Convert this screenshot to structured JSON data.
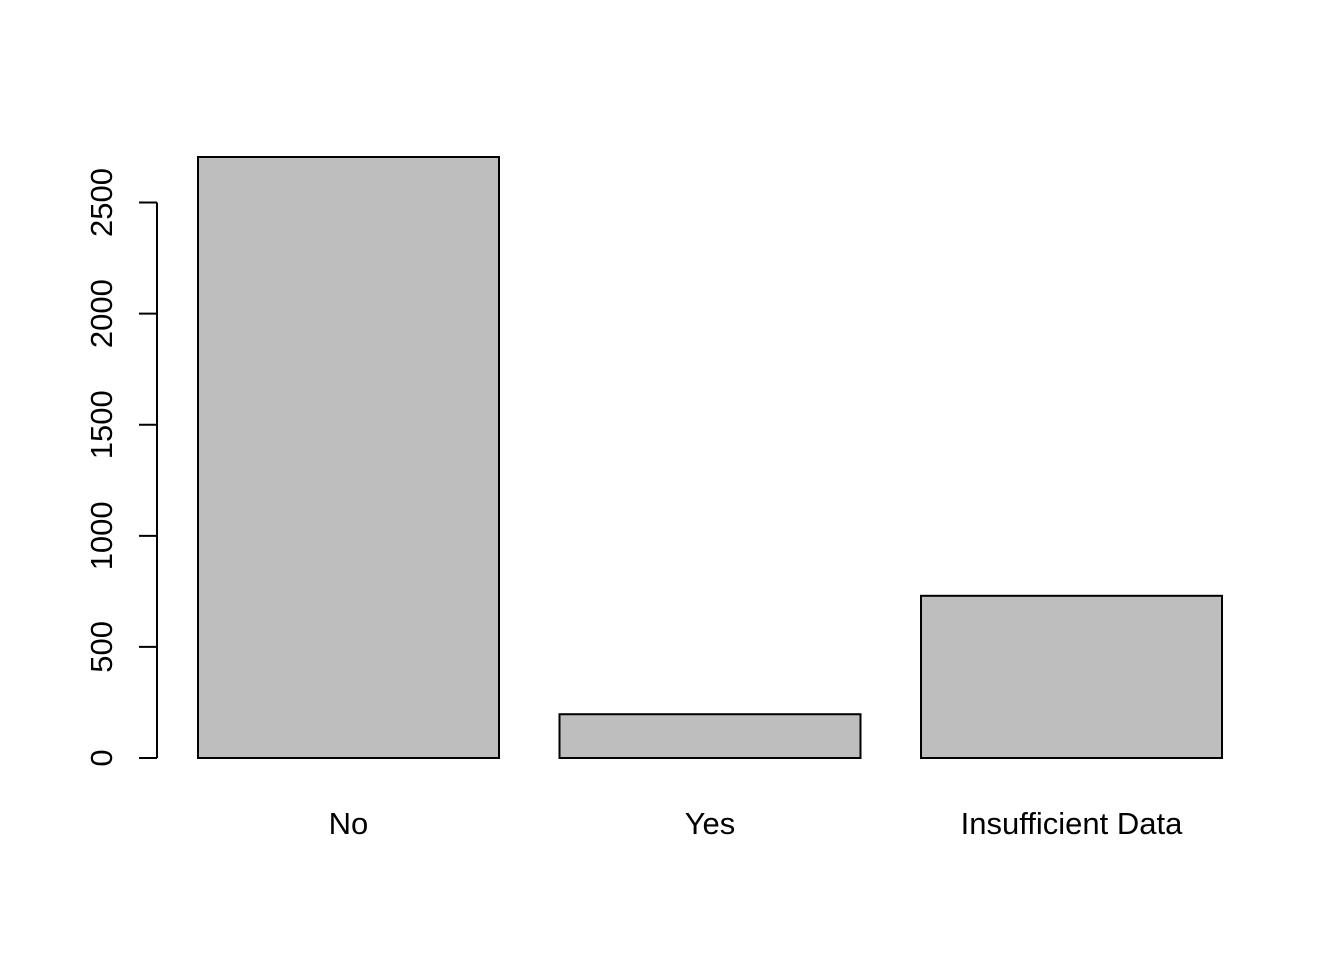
{
  "chart_data": {
    "type": "bar",
    "title": "",
    "xlabel": "",
    "ylabel": "",
    "categories": [
      "No",
      "Yes",
      "Insufficient Data"
    ],
    "values": [
      2705,
      197,
      730
    ],
    "ylim": [
      0,
      2705
    ],
    "yticks": [
      0,
      500,
      1000,
      1500,
      2000,
      2500
    ],
    "ytick_labels": [
      "0",
      "500",
      "1000",
      "1500",
      "2000",
      "2500"
    ],
    "grid": false,
    "legend": "none",
    "colors": {
      "bar_fill": "#bebebe",
      "bar_stroke": "#000000",
      "axis": "#000000",
      "background": "#ffffff"
    }
  }
}
